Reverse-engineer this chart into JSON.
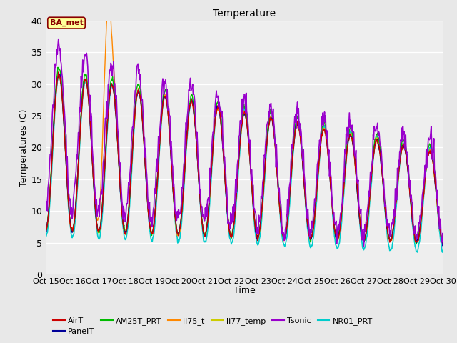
{
  "title": "Temperature",
  "xlabel": "Time",
  "ylabel": "Temperatures (C)",
  "ylim": [
    0,
    40
  ],
  "series": {
    "AirT": {
      "color": "#cc0000",
      "lw": 1.0,
      "zorder": 4
    },
    "PanelT": {
      "color": "#000099",
      "lw": 1.0,
      "zorder": 4
    },
    "AM25T_PRT": {
      "color": "#00bb00",
      "lw": 1.0,
      "zorder": 4
    },
    "li75_t": {
      "color": "#ff8800",
      "lw": 1.0,
      "zorder": 4
    },
    "li77_temp": {
      "color": "#cccc00",
      "lw": 1.0,
      "zorder": 4
    },
    "Tsonic": {
      "color": "#9900cc",
      "lw": 1.2,
      "zorder": 5
    },
    "NR01_PRT": {
      "color": "#00cccc",
      "lw": 1.2,
      "zorder": 3
    }
  },
  "annotation_text": "BA_met",
  "fig_color": "#e8e8e8",
  "plot_bg_color": "#eeeeee",
  "grid_color": "#ffffff",
  "x_tick_labels": [
    "Oct 15",
    "Oct 16",
    "Oct 17",
    "Oct 18",
    "Oct 19",
    "Oct 20",
    "Oct 21",
    "Oct 22",
    "Oct 23",
    "Oct 24",
    "Oct 25",
    "Oct 26",
    "Oct 27",
    "Oct 28",
    "Oct 29",
    "Oct 30"
  ],
  "yticks": [
    0,
    5,
    10,
    15,
    20,
    25,
    30,
    35,
    40
  ]
}
